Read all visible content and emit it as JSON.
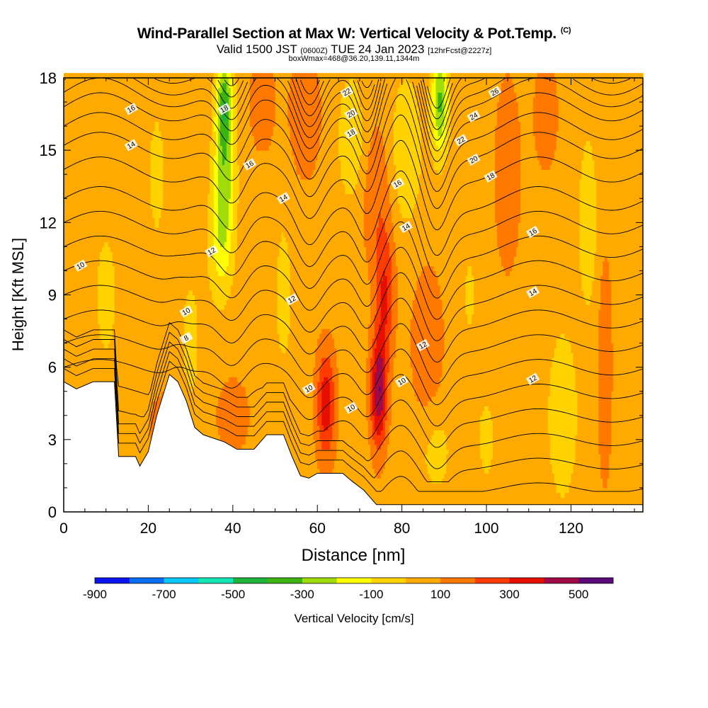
{
  "header": {
    "title": "Wind-Parallel Section at Max W: Vertical Velocity & Pot.Temp.",
    "copyright": "(C)",
    "valid_a": "Valid 1500 JST",
    "valid_utc": "(0600Z)",
    "valid_b": "TUE 24 Jan 2023",
    "fcst": "[12hrFcst@2227z]",
    "box": "boxWmax=468@36.20,139.11,1344m"
  },
  "chart_data": {
    "type": "heatmap",
    "title": "Wind-Parallel Section at Max W: Vertical Velocity & Pot.Temp.",
    "xlabel": "Distance [nm]",
    "ylabel": "Height [Kft MSL]",
    "xlim": [
      0,
      137
    ],
    "ylim": [
      0,
      18
    ],
    "x_ticks": [
      0,
      20,
      40,
      60,
      80,
      100,
      120
    ],
    "y_ticks": [
      0,
      3,
      6,
      9,
      12,
      15,
      18
    ],
    "colorbar": {
      "title": "Vertical Velocity [cm/s]",
      "levels": [
        -900,
        -800,
        -700,
        -600,
        -500,
        -400,
        -300,
        -200,
        -100,
        0,
        100,
        200,
        300,
        400,
        500,
        600
      ],
      "tick_labels": [
        "-900",
        "-700",
        "-500",
        "-300",
        "-100",
        "100",
        "300",
        "500"
      ],
      "colors": [
        "#0a14f0",
        "#0a6ef5",
        "#0ac8f5",
        "#14e6b4",
        "#1eb43c",
        "#3cb414",
        "#a0dc0a",
        "#ffff00",
        "#ffd200",
        "#ffaa00",
        "#ff7800",
        "#ff3c00",
        "#e60f00",
        "#a00a46",
        "#5a0a78"
      ]
    },
    "terrain": [
      {
        "x": 0,
        "h": 5.4
      },
      {
        "x": 3,
        "h": 5.1
      },
      {
        "x": 7,
        "h": 5.4
      },
      {
        "x": 12,
        "h": 5.4
      },
      {
        "x": 13,
        "h": 2.3
      },
      {
        "x": 17,
        "h": 2.3
      },
      {
        "x": 18,
        "h": 1.9
      },
      {
        "x": 20,
        "h": 2.5
      },
      {
        "x": 22,
        "h": 4.0
      },
      {
        "x": 25,
        "h": 5.7
      },
      {
        "x": 27,
        "h": 5.4
      },
      {
        "x": 29,
        "h": 4.6
      },
      {
        "x": 31,
        "h": 3.5
      },
      {
        "x": 33,
        "h": 3.2
      },
      {
        "x": 38,
        "h": 2.9
      },
      {
        "x": 41,
        "h": 2.6
      },
      {
        "x": 45,
        "h": 2.6
      },
      {
        "x": 48,
        "h": 3.2
      },
      {
        "x": 52,
        "h": 3.2
      },
      {
        "x": 54,
        "h": 2.3
      },
      {
        "x": 56,
        "h": 1.5
      },
      {
        "x": 58,
        "h": 1.4
      },
      {
        "x": 60,
        "h": 1.6
      },
      {
        "x": 66,
        "h": 1.6
      },
      {
        "x": 68,
        "h": 1.3
      },
      {
        "x": 71,
        "h": 0.9
      },
      {
        "x": 74,
        "h": 0.3
      },
      {
        "x": 137,
        "h": 0.3
      }
    ],
    "velocity_field": [
      {
        "x": 62,
        "y": 4.5,
        "w": 320,
        "sx": 2.2,
        "sy": 2.2
      },
      {
        "x": 74.5,
        "y": 5.0,
        "w": 430,
        "sx": 1.9,
        "sy": 2.3
      },
      {
        "x": 76,
        "y": 9.0,
        "w": 240,
        "sx": 2.2,
        "sy": 2.6
      },
      {
        "x": 74,
        "y": 13.0,
        "w": 120,
        "sx": 3.5,
        "sy": 3.0
      },
      {
        "x": 86,
        "y": 7.0,
        "w": 140,
        "sx": 3.5,
        "sy": 3.0
      },
      {
        "x": 57,
        "y": 16.5,
        "w": 140,
        "sx": 3.5,
        "sy": 2.5
      },
      {
        "x": 47,
        "y": 17.0,
        "w": 120,
        "sx": 3.0,
        "sy": 2.0
      },
      {
        "x": 128,
        "y": 6.0,
        "w": 140,
        "sx": 1.6,
        "sy": 4.5
      },
      {
        "x": 105,
        "y": 14.0,
        "w": 120,
        "sx": 3.0,
        "sy": 4.0
      },
      {
        "x": 114,
        "y": 16.5,
        "w": 100,
        "sx": 3.0,
        "sy": 2.5
      },
      {
        "x": 24,
        "y": 3.5,
        "w": 70,
        "sx": 5.0,
        "sy": 2.0
      },
      {
        "x": 40,
        "y": 4.0,
        "w": 60,
        "sx": 6.0,
        "sy": 2.5
      },
      {
        "x": 38,
        "y": 14.0,
        "w": -300,
        "sx": 2.5,
        "sy": 3.0
      },
      {
        "x": 37,
        "y": 11.0,
        "w": -160,
        "sx": 3.0,
        "sy": 2.5
      },
      {
        "x": 38,
        "y": 17.0,
        "w": -350,
        "sx": 2.0,
        "sy": 1.8
      },
      {
        "x": 89,
        "y": 17.0,
        "w": -380,
        "sx": 2.0,
        "sy": 2.2
      },
      {
        "x": 81,
        "y": 15.0,
        "w": -160,
        "sx": 3.5,
        "sy": 3.0
      },
      {
        "x": 68,
        "y": 15.5,
        "w": -160,
        "sx": 3.0,
        "sy": 2.5
      },
      {
        "x": 30,
        "y": 7.0,
        "w": -130,
        "sx": 2.0,
        "sy": 2.5
      },
      {
        "x": 118,
        "y": 4.0,
        "w": -150,
        "sx": 3.5,
        "sy": 3.5
      },
      {
        "x": 124,
        "y": 12.0,
        "w": -120,
        "sx": 2.5,
        "sy": 4.0
      },
      {
        "x": 88,
        "y": 2.5,
        "w": -100,
        "sx": 4.0,
        "sy": 2.0
      },
      {
        "x": 100,
        "y": 3.0,
        "w": -80,
        "sx": 3.0,
        "sy": 2.5
      },
      {
        "x": 10,
        "y": 9.0,
        "w": -100,
        "sx": 3.0,
        "sy": 3.0
      },
      {
        "x": 22,
        "y": 14.0,
        "w": -80,
        "sx": 3.0,
        "sy": 4.0
      },
      {
        "x": 52,
        "y": 9.0,
        "w": -90,
        "sx": 2.5,
        "sy": 4.0
      },
      {
        "x": 96,
        "y": 9.0,
        "w": -70,
        "sx": 2.5,
        "sy": 3.0
      }
    ],
    "theta_contour_labels": [
      {
        "text": "8",
        "x": 29,
        "y": 7.2
      },
      {
        "text": "10",
        "x": 4,
        "y": 10.2
      },
      {
        "text": "10",
        "x": 29,
        "y": 8.3
      },
      {
        "text": "10",
        "x": 58,
        "y": 5.1
      },
      {
        "text": "10",
        "x": 68,
        "y": 4.3
      },
      {
        "text": "10",
        "x": 80,
        "y": 5.4
      },
      {
        "text": "12",
        "x": 35,
        "y": 10.8
      },
      {
        "text": "12",
        "x": 54,
        "y": 8.8
      },
      {
        "text": "12",
        "x": 85,
        "y": 6.9
      },
      {
        "text": "12",
        "x": 111,
        "y": 5.5
      },
      {
        "text": "14",
        "x": 16,
        "y": 15.2
      },
      {
        "text": "14",
        "x": 52,
        "y": 13.0
      },
      {
        "text": "14",
        "x": 81,
        "y": 11.8
      },
      {
        "text": "14",
        "x": 111,
        "y": 9.1
      },
      {
        "text": "16",
        "x": 16,
        "y": 16.7
      },
      {
        "text": "16",
        "x": 44,
        "y": 14.4
      },
      {
        "text": "16",
        "x": 79,
        "y": 13.6
      },
      {
        "text": "16",
        "x": 111,
        "y": 11.6
      },
      {
        "text": "18",
        "x": 38,
        "y": 16.7
      },
      {
        "text": "18",
        "x": 68,
        "y": 15.7
      },
      {
        "text": "18",
        "x": 101,
        "y": 13.9
      },
      {
        "text": "20",
        "x": 68,
        "y": 16.5
      },
      {
        "text": "20",
        "x": 97,
        "y": 14.6
      },
      {
        "text": "22",
        "x": 67,
        "y": 17.4
      },
      {
        "text": "22",
        "x": 94,
        "y": 15.4
      },
      {
        "text": "24",
        "x": 97,
        "y": 16.4
      },
      {
        "text": "26",
        "x": 102,
        "y": 17.4
      }
    ]
  }
}
